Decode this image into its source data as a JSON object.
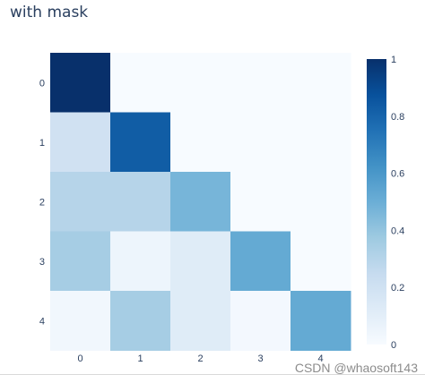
{
  "chart_data": {
    "type": "heatmap",
    "title": "with mask",
    "x": [
      "0",
      "1",
      "2",
      "3",
      "4"
    ],
    "y": [
      "0",
      "1",
      "2",
      "3",
      "4"
    ],
    "z": [
      [
        1.0,
        0.0,
        0.0,
        0.0,
        0.0
      ],
      [
        0.2,
        0.83,
        0.0,
        0.0,
        0.0
      ],
      [
        0.3,
        0.3,
        0.47,
        0.0,
        0.0
      ],
      [
        0.35,
        0.05,
        0.12,
        0.52,
        0.0
      ],
      [
        0.03,
        0.35,
        0.12,
        0.02,
        0.52
      ]
    ],
    "mask_value": 0.0,
    "colorscale": "Blues",
    "zlim": [
      0,
      1
    ],
    "colorbar": {
      "ticks": [
        "0",
        "0.2",
        "0.4",
        "0.6",
        "0.8",
        "1"
      ],
      "tick_values": [
        0,
        0.2,
        0.4,
        0.6,
        0.8,
        1
      ]
    }
  },
  "watermark": "CSDN @whaosoft143"
}
